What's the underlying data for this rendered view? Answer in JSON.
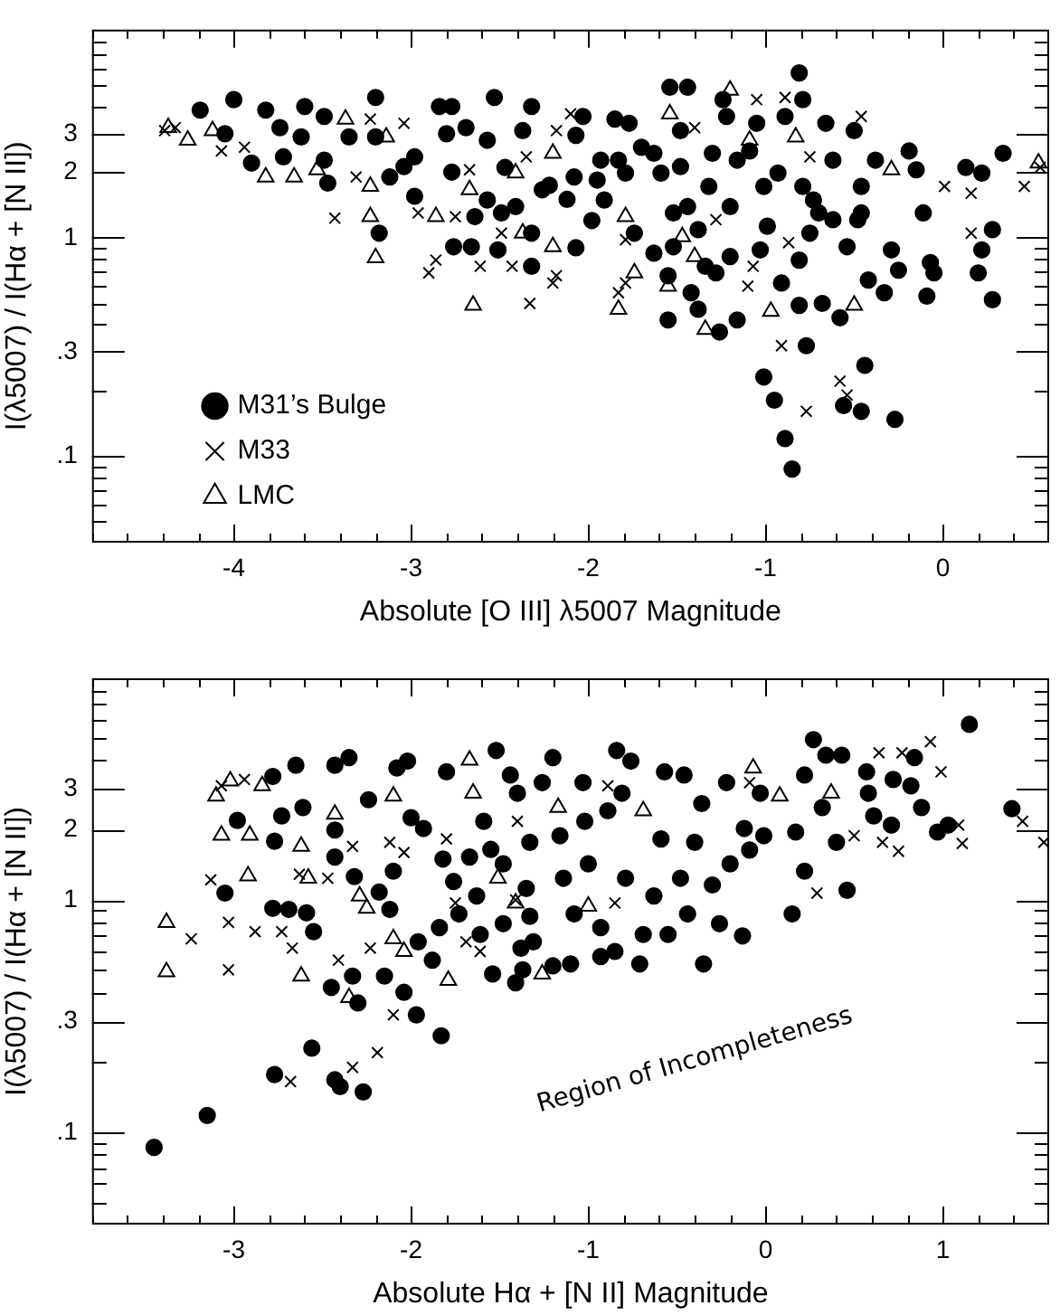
{
  "chart_data": [
    {
      "type": "scatter",
      "xlabel": "Absolute [O III] λ5007 Magnitude",
      "ylabel": "I(λ5007) / I(Hα + [N II])",
      "log": "y",
      "legend": "bottom left",
      "xlim": [
        -4.8,
        0.6
      ],
      "ylim": [
        0.04,
        9
      ],
      "xticks": [
        {
          "value": -4.8,
          "label": null
        },
        {
          "value": -4.6,
          "label": null
        },
        {
          "value": -4.4,
          "label": null
        },
        {
          "value": -4.2,
          "label": null
        },
        -4,
        {
          "value": -3.8,
          "label": null
        },
        {
          "value": -3.6,
          "label": null
        },
        {
          "value": -3.4,
          "label": null
        },
        {
          "value": -3.2,
          "label": null
        },
        -3,
        {
          "value": -2.8,
          "label": null
        },
        {
          "value": -2.6,
          "label": null
        },
        {
          "value": -2.4,
          "label": null
        },
        {
          "value": -2.2,
          "label": null
        },
        -2,
        {
          "value": -1.8,
          "label": null
        },
        {
          "value": -1.6,
          "label": null
        },
        {
          "value": -1.4,
          "label": null
        },
        {
          "value": -1.2,
          "label": null
        },
        -1,
        {
          "value": -0.8,
          "label": null
        },
        {
          "value": -0.6,
          "label": null
        },
        {
          "value": -0.4,
          "label": null
        },
        {
          "value": -0.2,
          "label": null
        },
        0,
        {
          "value": 0.2,
          "label": null
        },
        {
          "value": 0.4,
          "label": null
        }
      ],
      "yticks": [
        {
          "value": 0.05,
          "label": null
        },
        {
          "value": 0.06,
          "label": null
        },
        {
          "value": 0.07,
          "label": null
        },
        {
          "value": 0.08,
          "label": null
        },
        {
          "value": 0.09,
          "label": null
        },
        {
          "value": 0.1,
          "label": ".1"
        },
        {
          "value": 0.2,
          "label": null
        },
        {
          "value": 0.3,
          "label": ".3"
        },
        {
          "value": 0.4,
          "label": null
        },
        {
          "value": 0.5,
          "label": null
        },
        {
          "value": 0.6,
          "label": null
        },
        {
          "value": 0.7,
          "label": null
        },
        {
          "value": 0.8,
          "label": null
        },
        {
          "value": 0.9,
          "label": null
        },
        1,
        2,
        3,
        {
          "value": 4,
          "label": null
        },
        {
          "value": 5,
          "label": null
        },
        {
          "value": 6,
          "label": null
        },
        {
          "value": 7,
          "label": null
        },
        {
          "value": 8,
          "label": null
        }
      ],
      "series": [
        {
          "name": "M31’s Bulge",
          "color": "#000000",
          "marker": "circle",
          "x": [
            -4.19,
            -4.0,
            -3.82,
            -3.9,
            -3.72,
            -3.6,
            -3.49,
            -3.49,
            -3.47,
            -3.2,
            -3.2,
            -3.12,
            -3.18,
            -2.98,
            -2.98,
            -2.84,
            -2.77,
            -2.77,
            -2.76,
            -2.66,
            -2.69,
            -2.64,
            -2.53,
            -2.51,
            -2.49,
            -2.47,
            -2.37,
            -2.32,
            -2.32,
            -2.32,
            -2.26,
            -2.12,
            -2.08,
            -2.07,
            -2.07,
            -2.03,
            -1.98,
            -1.93,
            -1.85,
            -1.77,
            -1.74,
            -1.7,
            -1.63,
            -1.59,
            -1.55,
            -1.55,
            -1.54,
            -1.44,
            -1.52,
            -1.48,
            -1.44,
            -1.42,
            -1.38,
            -1.38,
            -1.34,
            -1.3,
            -1.26,
            -1.24,
            -1.22,
            -1.2,
            -1.2,
            -1.16,
            -1.09,
            -1.05,
            -1.01,
            -1.01,
            -0.99,
            -1.03,
            -0.95,
            -0.91,
            -0.89,
            -0.89,
            -0.85,
            -0.81,
            -0.79,
            -0.81,
            -0.77,
            -0.79,
            -0.75,
            -0.7,
            -0.66,
            -0.68,
            -0.62,
            -0.58,
            -0.56,
            -0.54,
            -0.5,
            -0.48,
            -0.46,
            -0.46,
            -0.44,
            -0.42,
            -0.38,
            -0.33,
            -0.29,
            -0.27,
            -0.25,
            -0.19,
            -0.15,
            -0.11,
            -0.09,
            -0.07,
            -0.05,
            0.13,
            0.22,
            0.22,
            0.2,
            0.28,
            0.28,
            0.34,
            -1.95,
            -1.79,
            -1.63,
            -1.48,
            -1.32,
            -1.16,
            -0.93,
            -0.73,
            -0.62,
            -0.81,
            -0.46,
            -1.28,
            -1.52,
            -1.83,
            -1.91,
            -2.22,
            -2.41,
            -2.57,
            -3.04,
            -3.35,
            -3.62,
            -4.05,
            -3.74,
            -2.8,
            -2.57
          ],
          "values": [
            3.85,
            4.3,
            3.85,
            2.2,
            2.35,
            4.0,
            3.6,
            2.27,
            1.78,
            4.4,
            2.9,
            1.9,
            1.05,
            2.35,
            1.55,
            4.0,
            4.0,
            2.0,
            0.91,
            0.91,
            3.2,
            1.25,
            4.4,
            0.88,
            1.3,
            2.1,
            3.1,
            4.0,
            1.05,
            0.74,
            1.66,
            1.5,
            1.9,
            0.9,
            2.95,
            3.6,
            1.2,
            2.27,
            3.5,
            3.35,
            1.05,
            2.6,
            0.85,
            1.98,
            0.67,
            0.42,
            4.9,
            4.9,
            1.3,
            3.1,
            1.39,
            0.56,
            0.47,
            1.09,
            0.74,
            2.44,
            0.37,
            4.3,
            3.6,
            0.82,
            1.39,
            0.42,
            2.5,
            3.35,
            1.72,
            0.23,
            1.13,
            0.88,
            0.18,
            0.62,
            3.6,
            0.12,
            0.087,
            5.7,
            4.3,
            0.49,
            0.32,
            1.72,
            1.05,
            1.3,
            3.35,
            0.5,
            2.27,
            0.43,
            0.17,
            0.91,
            3.1,
            1.21,
            0.16,
            1.72,
            0.26,
            0.64,
            2.27,
            0.56,
            0.88,
            0.147,
            0.71,
            2.5,
            2.05,
            1.3,
            0.54,
            0.77,
            0.69,
            2.1,
            1.98,
            0.88,
            0.69,
            1.09,
            0.52,
            2.44,
            1.84,
            1.98,
            2.44,
            2.12,
            1.72,
            2.27,
            1.98,
            1.49,
            1.21,
            0.79,
            1.3,
            0.69,
            0.91,
            2.27,
            1.49,
            1.74,
            1.39,
            1.49,
            2.12,
            2.9,
            2.9,
            3.0,
            3.2,
            3.0,
            2.8
          ]
        },
        {
          "name": "M33",
          "color": "#000000",
          "marker": "cross",
          "x": [
            -4.39,
            -4.33,
            -4.07,
            -3.94,
            -3.43,
            -3.31,
            -3.23,
            -3.04,
            -2.96,
            -2.9,
            -2.86,
            -2.75,
            -2.67,
            -2.61,
            -2.49,
            -2.43,
            -2.35,
            -2.33,
            -2.18,
            -2.2,
            -2.1,
            -2.18,
            -1.83,
            -1.79,
            -1.79,
            -1.4,
            -1.28,
            -1.1,
            -1.05,
            -1.07,
            -0.91,
            -0.89,
            -0.87,
            -0.77,
            -0.75,
            -0.58,
            -0.54,
            -0.46,
            0.01,
            0.16,
            0.16,
            0.46,
            0.55
          ],
          "values": [
            3.1,
            3.2,
            2.5,
            2.6,
            1.23,
            1.9,
            3.5,
            3.35,
            1.3,
            0.69,
            0.79,
            1.25,
            2.05,
            0.74,
            1.05,
            0.74,
            2.35,
            0.5,
            0.67,
            0.62,
            3.7,
            3.1,
            0.56,
            0.98,
            0.62,
            3.2,
            1.21,
            0.6,
            4.3,
            0.74,
            0.32,
            4.4,
            0.95,
            0.16,
            2.35,
            0.22,
            0.19,
            3.6,
            1.72,
            1.6,
            1.05,
            1.72,
            2.1
          ]
        },
        {
          "name": "LMC",
          "color": "#000000",
          "marker": "triangle",
          "x": [
            -4.37,
            -4.26,
            -4.12,
            -3.82,
            -3.66,
            -3.53,
            -3.37,
            -3.23,
            -3.23,
            -3.2,
            -3.14,
            -2.86,
            -2.65,
            -2.67,
            -2.37,
            -2.41,
            -2.2,
            -2.2,
            -1.83,
            -1.79,
            -1.74,
            -1.55,
            -1.54,
            -1.47,
            -1.4,
            -1.34,
            -1.2,
            -1.09,
            -0.97,
            -0.83,
            -0.5,
            -0.29,
            0.54
          ],
          "values": [
            3.2,
            2.8,
            3.1,
            1.9,
            1.9,
            2.05,
            3.5,
            1.72,
            1.25,
            0.81,
            2.9,
            1.25,
            0.49,
            1.66,
            1.05,
            1.98,
            0.91,
            2.44,
            0.47,
            1.25,
            0.69,
            0.6,
            3.7,
            1.01,
            0.82,
            0.38,
            4.75,
            2.8,
            0.46,
            2.9,
            0.49,
            2.05,
            2.2
          ]
        }
      ]
    },
    {
      "type": "scatter",
      "xlabel": "Absolute Hα + [N II] Magnitude",
      "ylabel": "I(λ5007) / I(Hα + [N II])",
      "log": "y",
      "xlim": [
        -3.8,
        1.6
      ],
      "ylim": [
        0.04,
        9
      ],
      "annotations": [
        "Region of Incompleteness"
      ],
      "xticks": [
        {
          "value": -3.8,
          "label": null
        },
        {
          "value": -3.6,
          "label": null
        },
        {
          "value": -3.4,
          "label": null
        },
        {
          "value": -3.2,
          "label": null
        },
        -3,
        {
          "value": -2.8,
          "label": null
        },
        {
          "value": -2.6,
          "label": null
        },
        {
          "value": -2.4,
          "label": null
        },
        {
          "value": -2.2,
          "label": null
        },
        -2,
        {
          "value": -1.8,
          "label": null
        },
        {
          "value": -1.6,
          "label": null
        },
        {
          "value": -1.4,
          "label": null
        },
        {
          "value": -1.2,
          "label": null
        },
        -1,
        {
          "value": -0.8,
          "label": null
        },
        {
          "value": -0.6,
          "label": null
        },
        {
          "value": -0.4,
          "label": null
        },
        {
          "value": -0.2,
          "label": null
        },
        0,
        {
          "value": 0.2,
          "label": null
        },
        {
          "value": 0.4,
          "label": null
        },
        {
          "value": 0.6,
          "label": null
        },
        {
          "value": 0.8,
          "label": null
        },
        1,
        {
          "value": 1.2,
          "label": null
        },
        {
          "value": 1.4,
          "label": null
        }
      ],
      "yticks": [
        {
          "value": 0.05,
          "label": null
        },
        {
          "value": 0.06,
          "label": null
        },
        {
          "value": 0.07,
          "label": null
        },
        {
          "value": 0.08,
          "label": null
        },
        {
          "value": 0.09,
          "label": null
        },
        {
          "value": 0.1,
          "label": ".1"
        },
        {
          "value": 0.2,
          "label": null
        },
        {
          "value": 0.3,
          "label": ".3"
        },
        {
          "value": 0.4,
          "label": null
        },
        {
          "value": 0.5,
          "label": null
        },
        {
          "value": 0.6,
          "label": null
        },
        {
          "value": 0.7,
          "label": null
        },
        {
          "value": 0.8,
          "label": null
        },
        {
          "value": 0.9,
          "label": null
        },
        1,
        2,
        3,
        {
          "value": 4,
          "label": null
        },
        {
          "value": 5,
          "label": null
        },
        {
          "value": 6,
          "label": null
        },
        {
          "value": 7,
          "label": null
        },
        {
          "value": 8,
          "label": null
        }
      ],
      "series": [
        {
          "color": "#000000",
          "marker": "circle",
          "x": [
            -3.45,
            -3.15,
            -3.05,
            -2.98,
            -2.78,
            -2.77,
            -2.77,
            -2.73,
            -2.78,
            -2.69,
            -2.65,
            -2.61,
            -2.59,
            -2.56,
            -2.55,
            -2.45,
            -2.43,
            -2.4,
            -2.43,
            -2.43,
            -2.43,
            -2.35,
            -2.33,
            -2.32,
            -2.3,
            -2.27,
            -2.24,
            -2.18,
            -2.15,
            -2.12,
            -2.1,
            -2.08,
            -2.04,
            -2.02,
            -2.0,
            -1.97,
            -1.96,
            -1.93,
            -1.88,
            -1.84,
            -1.82,
            -1.83,
            -1.8,
            -1.76,
            -1.73,
            -1.67,
            -1.63,
            -1.61,
            -1.59,
            -1.55,
            -1.54,
            -1.52,
            -1.48,
            -1.48,
            -1.44,
            -1.41,
            -1.4,
            -1.38,
            -1.37,
            -1.35,
            -1.33,
            -1.33,
            -1.31,
            -1.26,
            -1.2,
            -1.2,
            -1.16,
            -1.14,
            -1.1,
            -1.08,
            -1.03,
            -1.02,
            -1.0,
            -0.93,
            -0.93,
            -0.89,
            -0.85,
            -0.84,
            -0.81,
            -0.79,
            -0.76,
            -0.71,
            -0.69,
            -0.63,
            -0.59,
            -0.57,
            -0.55,
            -0.48,
            -0.46,
            -0.44,
            -0.4,
            -0.36,
            -0.35,
            -0.3,
            -0.26,
            -0.22,
            -0.2,
            -0.13,
            -0.12,
            -0.09,
            -0.03,
            -0.01,
            0.15,
            0.17,
            0.22,
            0.22,
            0.27,
            0.32,
            0.34,
            0.4,
            0.43,
            0.46,
            0.58,
            0.57,
            0.61,
            0.71,
            0.72,
            0.82,
            0.84,
            0.88,
            0.97,
            1.03,
            1.15,
            1.39
          ],
          "values": [
            0.086,
            0.118,
            1.07,
            2.2,
            3.4,
            1.79,
            0.177,
            2.3,
            0.92,
            0.91,
            3.8,
            2.5,
            0.88,
            0.23,
            0.73,
            0.42,
            0.168,
            0.157,
            3.8,
            2.0,
            1.53,
            4.1,
            0.47,
            1.26,
            0.36,
            0.149,
            2.7,
            1.08,
            0.47,
            0.91,
            1.33,
            3.7,
            0.4,
            3.96,
            2.26,
            0.32,
            0.66,
            2.03,
            0.55,
            0.76,
            1.5,
            0.26,
            3.56,
            1.2,
            0.87,
            1.53,
            1.04,
            0.71,
            2.18,
            1.65,
            0.48,
            4.4,
            1.43,
            0.79,
            3.45,
            0.44,
            2.88,
            0.62,
            0.5,
            1.12,
            1.77,
            0.85,
            0.66,
            3.2,
            4.1,
            0.52,
            1.89,
            1.24,
            0.53,
            0.87,
            3.2,
            2.18,
            1.43,
            0.76,
            0.57,
            2.42,
            0.6,
            4.4,
            2.88,
            1.24,
            3.96,
            0.53,
            0.71,
            1.04,
            1.83,
            3.56,
            0.71,
            1.24,
            3.45,
            0.87,
            1.77,
            2.6,
            0.53,
            1.16,
            0.79,
            3.2,
            1.43,
            0.7,
            2.03,
            1.64,
            2.88,
            1.89,
            0.87,
            1.96,
            1.33,
            3.45,
            4.9,
            2.5,
            4.2,
            1.77,
            4.2,
            1.1,
            2.88,
            3.56,
            2.3,
            2.1,
            3.3,
            3.1,
            4.1,
            2.5,
            1.96,
            2.1,
            5.7,
            2.47
          ]
        },
        {
          "color": "#000000",
          "marker": "cross",
          "x": [
            -3.13,
            -3.07,
            -3.03,
            -3.03,
            -2.94,
            -2.88,
            -3.24,
            -2.73,
            -2.68,
            -2.67,
            -2.63,
            -2.51,
            -2.47,
            -2.41,
            -2.33,
            -2.33,
            -2.23,
            -2.19,
            -2.12,
            -2.1,
            -2.04,
            -1.8,
            -1.75,
            -1.69,
            -1.61,
            -1.4,
            -1.41,
            -0.89,
            -0.85,
            -0.09,
            0.29,
            0.5,
            0.64,
            0.66,
            0.75,
            0.77,
            0.93,
            0.99,
            1.11,
            1.09,
            1.45,
            1.57
          ],
          "values": [
            1.22,
            3.1,
            0.8,
            0.5,
            3.3,
            0.73,
            0.68,
            0.73,
            0.165,
            0.62,
            1.29,
            null,
            1.24,
            0.55,
            0.19,
            1.7,
            0.62,
            0.22,
            1.77,
            0.32,
            1.6,
            1.83,
            0.97,
            0.66,
            0.6,
            2.18,
            1.0,
            3.1,
            0.97,
            3.2,
            1.07,
            1.89,
            4.3,
            1.77,
            1.62,
            4.3,
            4.8,
            3.56,
            1.75,
            2.1,
            2.18,
            1.77
          ]
        },
        {
          "color": "#000000",
          "marker": "triangle",
          "x": [
            -3.38,
            -3.38,
            -3.1,
            -3.02,
            -3.07,
            -2.91,
            -2.92,
            -2.84,
            -2.62,
            -2.62,
            -2.58,
            -2.43,
            -2.35,
            -2.29,
            -2.25,
            -2.1,
            -2.1,
            -2.04,
            -1.79,
            -1.67,
            -1.65,
            -1.51,
            -1.48,
            -1.41,
            -1.26,
            -1.17,
            -1.0,
            -0.69,
            -0.07,
            0.08,
            0.37
          ],
          "values": [
            0.8,
            0.49,
            2.8,
            3.25,
            1.9,
            1.9,
            1.27,
            3.1,
            0.47,
            1.7,
            1.24,
            2.34,
            0.38,
            1.04,
            0.92,
            0.68,
            2.8,
            0.6,
            0.45,
            4.0,
            2.88,
            1.24,
            null,
            0.97,
            0.48,
            2.5,
            0.94,
            2.42,
            3.7,
            2.8,
            2.88
          ]
        }
      ]
    }
  ]
}
